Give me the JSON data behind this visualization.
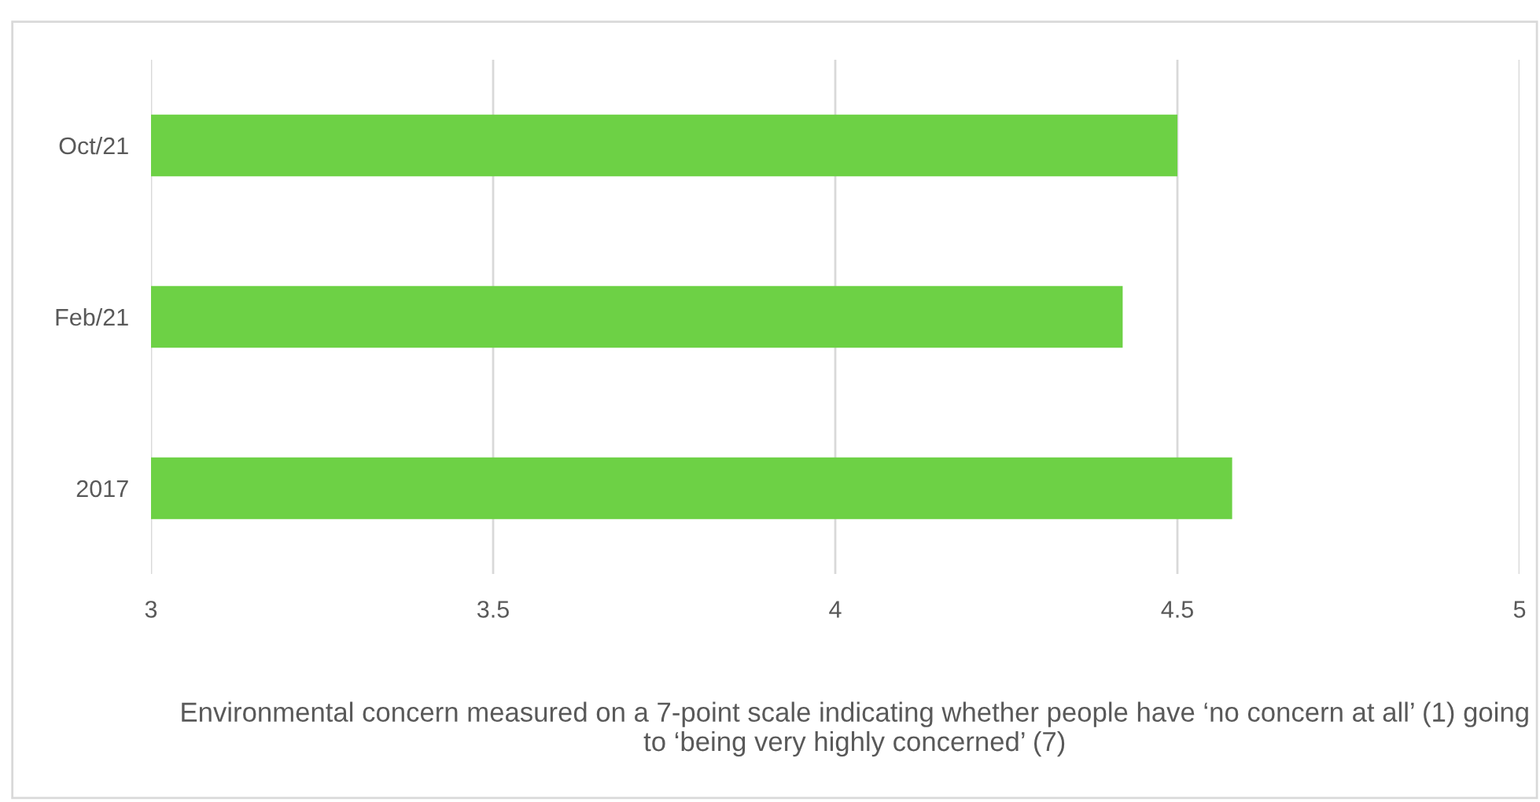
{
  "chart_data": {
    "type": "bar",
    "orientation": "horizontal",
    "categories": [
      "Oct/21",
      "Feb/21",
      "2017"
    ],
    "values": [
      4.5,
      4.42,
      4.58
    ],
    "color": "#6dd145",
    "xlim": [
      3,
      5
    ],
    "xticks": [
      3,
      3.5,
      4,
      4.5,
      5
    ],
    "grid": "x",
    "xlabel": "Environmental concern measured on a 7-point scale indicating whether people have ‘no concern at all’ (1) going to ‘being very highly concerned’ (7)"
  }
}
